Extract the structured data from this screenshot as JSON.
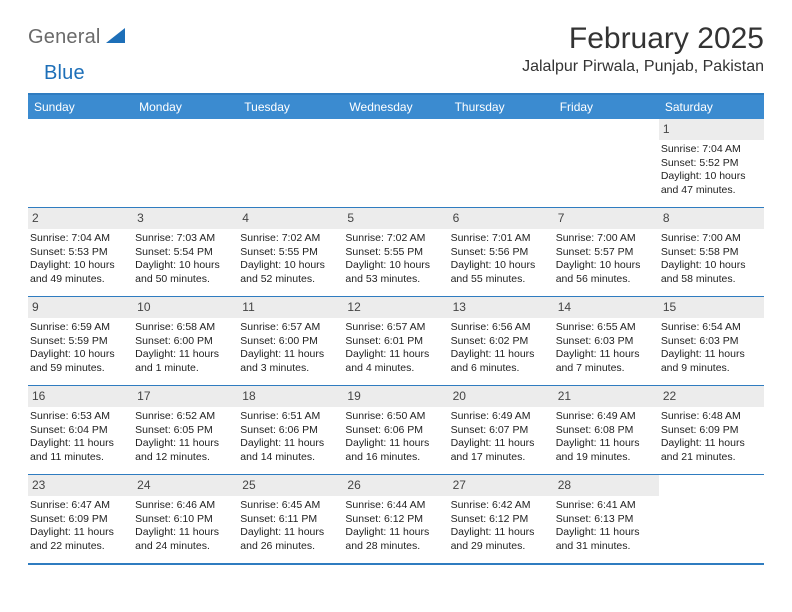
{
  "brand": {
    "part1": "General",
    "part2": "Blue",
    "sail_color": "#1d6fb8",
    "gray": "#6a6a6a"
  },
  "title": "February 2025",
  "location": "Jalalpur Pirwala, Punjab, Pakistan",
  "colors": {
    "header_bar": "#3b8bd0",
    "border": "#2f7cc0",
    "daynum_bg": "#ececec",
    "text": "#333333",
    "white": "#ffffff"
  },
  "weekdays": [
    "Sunday",
    "Monday",
    "Tuesday",
    "Wednesday",
    "Thursday",
    "Friday",
    "Saturday"
  ],
  "weeks": [
    [
      {
        "empty": true
      },
      {
        "empty": true
      },
      {
        "empty": true
      },
      {
        "empty": true
      },
      {
        "empty": true
      },
      {
        "empty": true
      },
      {
        "n": "1",
        "sunrise": "Sunrise: 7:04 AM",
        "sunset": "Sunset: 5:52 PM",
        "day1": "Daylight: 10 hours",
        "day2": "and 47 minutes."
      }
    ],
    [
      {
        "n": "2",
        "sunrise": "Sunrise: 7:04 AM",
        "sunset": "Sunset: 5:53 PM",
        "day1": "Daylight: 10 hours",
        "day2": "and 49 minutes."
      },
      {
        "n": "3",
        "sunrise": "Sunrise: 7:03 AM",
        "sunset": "Sunset: 5:54 PM",
        "day1": "Daylight: 10 hours",
        "day2": "and 50 minutes."
      },
      {
        "n": "4",
        "sunrise": "Sunrise: 7:02 AM",
        "sunset": "Sunset: 5:55 PM",
        "day1": "Daylight: 10 hours",
        "day2": "and 52 minutes."
      },
      {
        "n": "5",
        "sunrise": "Sunrise: 7:02 AM",
        "sunset": "Sunset: 5:55 PM",
        "day1": "Daylight: 10 hours",
        "day2": "and 53 minutes."
      },
      {
        "n": "6",
        "sunrise": "Sunrise: 7:01 AM",
        "sunset": "Sunset: 5:56 PM",
        "day1": "Daylight: 10 hours",
        "day2": "and 55 minutes."
      },
      {
        "n": "7",
        "sunrise": "Sunrise: 7:00 AM",
        "sunset": "Sunset: 5:57 PM",
        "day1": "Daylight: 10 hours",
        "day2": "and 56 minutes."
      },
      {
        "n": "8",
        "sunrise": "Sunrise: 7:00 AM",
        "sunset": "Sunset: 5:58 PM",
        "day1": "Daylight: 10 hours",
        "day2": "and 58 minutes."
      }
    ],
    [
      {
        "n": "9",
        "sunrise": "Sunrise: 6:59 AM",
        "sunset": "Sunset: 5:59 PM",
        "day1": "Daylight: 10 hours",
        "day2": "and 59 minutes."
      },
      {
        "n": "10",
        "sunrise": "Sunrise: 6:58 AM",
        "sunset": "Sunset: 6:00 PM",
        "day1": "Daylight: 11 hours",
        "day2": "and 1 minute."
      },
      {
        "n": "11",
        "sunrise": "Sunrise: 6:57 AM",
        "sunset": "Sunset: 6:00 PM",
        "day1": "Daylight: 11 hours",
        "day2": "and 3 minutes."
      },
      {
        "n": "12",
        "sunrise": "Sunrise: 6:57 AM",
        "sunset": "Sunset: 6:01 PM",
        "day1": "Daylight: 11 hours",
        "day2": "and 4 minutes."
      },
      {
        "n": "13",
        "sunrise": "Sunrise: 6:56 AM",
        "sunset": "Sunset: 6:02 PM",
        "day1": "Daylight: 11 hours",
        "day2": "and 6 minutes."
      },
      {
        "n": "14",
        "sunrise": "Sunrise: 6:55 AM",
        "sunset": "Sunset: 6:03 PM",
        "day1": "Daylight: 11 hours",
        "day2": "and 7 minutes."
      },
      {
        "n": "15",
        "sunrise": "Sunrise: 6:54 AM",
        "sunset": "Sunset: 6:03 PM",
        "day1": "Daylight: 11 hours",
        "day2": "and 9 minutes."
      }
    ],
    [
      {
        "n": "16",
        "sunrise": "Sunrise: 6:53 AM",
        "sunset": "Sunset: 6:04 PM",
        "day1": "Daylight: 11 hours",
        "day2": "and 11 minutes."
      },
      {
        "n": "17",
        "sunrise": "Sunrise: 6:52 AM",
        "sunset": "Sunset: 6:05 PM",
        "day1": "Daylight: 11 hours",
        "day2": "and 12 minutes."
      },
      {
        "n": "18",
        "sunrise": "Sunrise: 6:51 AM",
        "sunset": "Sunset: 6:06 PM",
        "day1": "Daylight: 11 hours",
        "day2": "and 14 minutes."
      },
      {
        "n": "19",
        "sunrise": "Sunrise: 6:50 AM",
        "sunset": "Sunset: 6:06 PM",
        "day1": "Daylight: 11 hours",
        "day2": "and 16 minutes."
      },
      {
        "n": "20",
        "sunrise": "Sunrise: 6:49 AM",
        "sunset": "Sunset: 6:07 PM",
        "day1": "Daylight: 11 hours",
        "day2": "and 17 minutes."
      },
      {
        "n": "21",
        "sunrise": "Sunrise: 6:49 AM",
        "sunset": "Sunset: 6:08 PM",
        "day1": "Daylight: 11 hours",
        "day2": "and 19 minutes."
      },
      {
        "n": "22",
        "sunrise": "Sunrise: 6:48 AM",
        "sunset": "Sunset: 6:09 PM",
        "day1": "Daylight: 11 hours",
        "day2": "and 21 minutes."
      }
    ],
    [
      {
        "n": "23",
        "sunrise": "Sunrise: 6:47 AM",
        "sunset": "Sunset: 6:09 PM",
        "day1": "Daylight: 11 hours",
        "day2": "and 22 minutes."
      },
      {
        "n": "24",
        "sunrise": "Sunrise: 6:46 AM",
        "sunset": "Sunset: 6:10 PM",
        "day1": "Daylight: 11 hours",
        "day2": "and 24 minutes."
      },
      {
        "n": "25",
        "sunrise": "Sunrise: 6:45 AM",
        "sunset": "Sunset: 6:11 PM",
        "day1": "Daylight: 11 hours",
        "day2": "and 26 minutes."
      },
      {
        "n": "26",
        "sunrise": "Sunrise: 6:44 AM",
        "sunset": "Sunset: 6:12 PM",
        "day1": "Daylight: 11 hours",
        "day2": "and 28 minutes."
      },
      {
        "n": "27",
        "sunrise": "Sunrise: 6:42 AM",
        "sunset": "Sunset: 6:12 PM",
        "day1": "Daylight: 11 hours",
        "day2": "and 29 minutes."
      },
      {
        "n": "28",
        "sunrise": "Sunrise: 6:41 AM",
        "sunset": "Sunset: 6:13 PM",
        "day1": "Daylight: 11 hours",
        "day2": "and 31 minutes."
      },
      {
        "empty": true
      }
    ]
  ]
}
